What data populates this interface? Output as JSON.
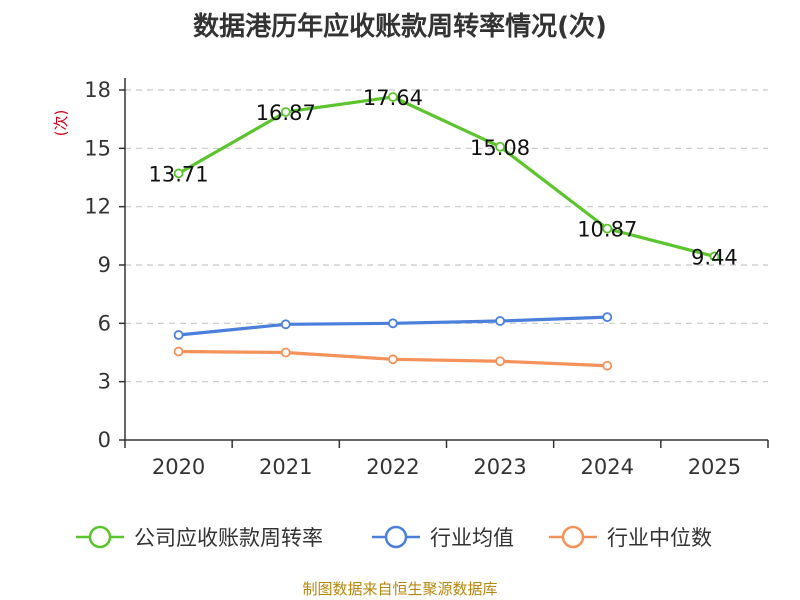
{
  "title": "数据港历年应收账款周转率情况(次)",
  "source": "制图数据来自恒生聚源数据库",
  "chart_data": {
    "type": "line",
    "title": "数据港历年应收账款周转率情况(次)",
    "ylabel": "(次)",
    "xlabel": "",
    "categories": [
      "2020",
      "2021",
      "2022",
      "2023",
      "2024",
      "2025"
    ],
    "ylim": [
      0,
      18
    ],
    "yticks": [
      0,
      3,
      6,
      9,
      12,
      15,
      18
    ],
    "grid": true,
    "legend_position": "bottom",
    "series": [
      {
        "name": "公司应收账款周转率",
        "color": "#5cc52e",
        "values": [
          13.71,
          16.87,
          17.64,
          15.08,
          10.87,
          9.44
        ],
        "labels": [
          "13.71",
          "16.87",
          "17.64",
          "15.08",
          "10.87",
          "9.44"
        ]
      },
      {
        "name": "行业均值",
        "color": "#4a7fdc",
        "values": [
          5.4,
          5.95,
          6.0,
          6.12,
          6.32,
          null
        ]
      },
      {
        "name": "行业中位数",
        "color": "#f4925a",
        "values": [
          4.55,
          4.5,
          4.15,
          4.05,
          3.82,
          null
        ]
      }
    ]
  }
}
